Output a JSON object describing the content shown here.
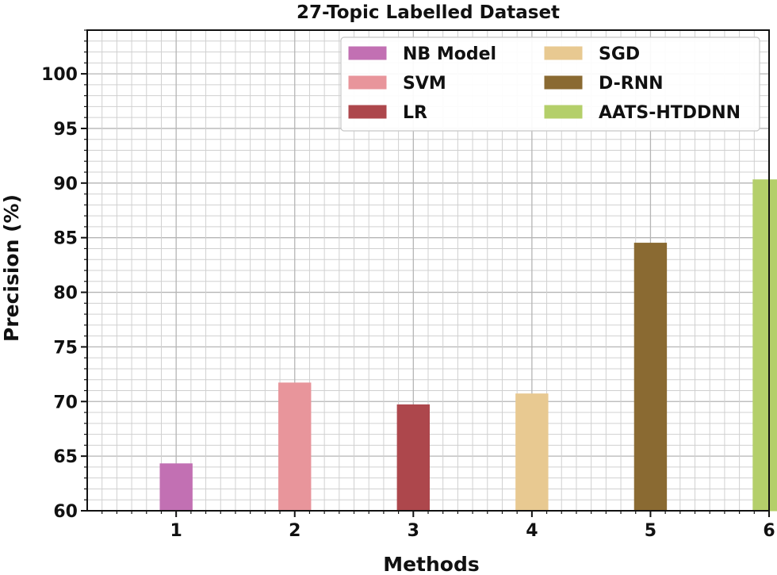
{
  "chart_data": {
    "type": "bar",
    "title": "27-Topic Labelled Dataset",
    "xlabel": "Methods",
    "ylabel": "Precision (%)",
    "categories": [
      "1",
      "2",
      "3",
      "4",
      "5",
      "6"
    ],
    "yticks": [
      "60",
      "65",
      "70",
      "75",
      "80",
      "85",
      "90",
      "95",
      "100"
    ],
    "ylim": [
      60,
      104
    ],
    "grid": true,
    "legend_position": "top-right",
    "series": [
      {
        "name": "NB Model",
        "category": "1",
        "value": 64.3,
        "color": "#c270b3"
      },
      {
        "name": "SVM",
        "category": "2",
        "value": 71.7,
        "color": "#e8959b"
      },
      {
        "name": "LR",
        "category": "3",
        "value": 69.7,
        "color": "#ad474c"
      },
      {
        "name": "SGD",
        "category": "4",
        "value": 70.7,
        "color": "#e8c991"
      },
      {
        "name": "D-RNN",
        "category": "5",
        "value": 84.5,
        "color": "#8a6a32"
      },
      {
        "name": "AATS-HTDDNN",
        "category": "6",
        "value": 90.3,
        "color": "#b4cf6a"
      }
    ]
  }
}
